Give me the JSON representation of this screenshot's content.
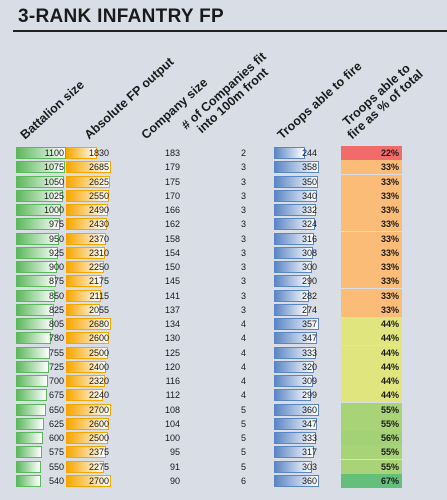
{
  "title": "3-RANK INFANTRY FP",
  "chart_data": {
    "type": "table",
    "columns": [
      "Battalion size",
      "Absolute FP output",
      "Company size",
      "# of Companies fit into 100m front",
      "Troops able to fire",
      "Troops able to fire as % of total"
    ],
    "rows": [
      [
        1100,
        1830,
        183,
        2,
        244,
        "22%"
      ],
      [
        1075,
        2685,
        179,
        3,
        358,
        "33%"
      ],
      [
        1050,
        2625,
        175,
        3,
        350,
        "33%"
      ],
      [
        1025,
        2550,
        170,
        3,
        340,
        "33%"
      ],
      [
        1000,
        2490,
        166,
        3,
        332,
        "33%"
      ],
      [
        975,
        2430,
        162,
        3,
        324,
        "33%"
      ],
      [
        950,
        2370,
        158,
        3,
        316,
        "33%"
      ],
      [
        925,
        2310,
        154,
        3,
        308,
        "33%"
      ],
      [
        900,
        2250,
        150,
        3,
        300,
        "33%"
      ],
      [
        875,
        2175,
        145,
        3,
        290,
        "33%"
      ],
      [
        850,
        2115,
        141,
        3,
        282,
        "33%"
      ],
      [
        825,
        2055,
        137,
        3,
        274,
        "33%"
      ],
      [
        805,
        2680,
        134,
        4,
        357,
        "44%"
      ],
      [
        780,
        2600,
        130,
        4,
        347,
        "44%"
      ],
      [
        755,
        2500,
        125,
        4,
        333,
        "44%"
      ],
      [
        725,
        2400,
        120,
        4,
        320,
        "44%"
      ],
      [
        700,
        2320,
        116,
        4,
        309,
        "44%"
      ],
      [
        675,
        2240,
        112,
        4,
        299,
        "44%"
      ],
      [
        650,
        2700,
        108,
        5,
        360,
        "55%"
      ],
      [
        625,
        2600,
        104,
        5,
        347,
        "55%"
      ],
      [
        600,
        2500,
        100,
        5,
        333,
        "56%"
      ],
      [
        575,
        2375,
        95,
        5,
        317,
        "55%"
      ],
      [
        550,
        2275,
        91,
        5,
        303,
        "55%"
      ],
      [
        540,
        2700,
        90,
        6,
        360,
        "67%"
      ]
    ],
    "data_bars": {
      "Battalion size": {
        "color": "#5cb85c",
        "max": 1100
      },
      "Absolute FP output": {
        "color": "#f7a600",
        "max": 2700
      },
      "Troops able to fire": {
        "color": "#5b86c5",
        "max": 360
      }
    },
    "percent_colors": {
      "22%": "#f26b6b",
      "33%": "#fbbc78",
      "44%": "#e1e57e",
      "55%": "#a8d377",
      "56%": "#a3d175",
      "67%": "#64bf7b"
    }
  }
}
